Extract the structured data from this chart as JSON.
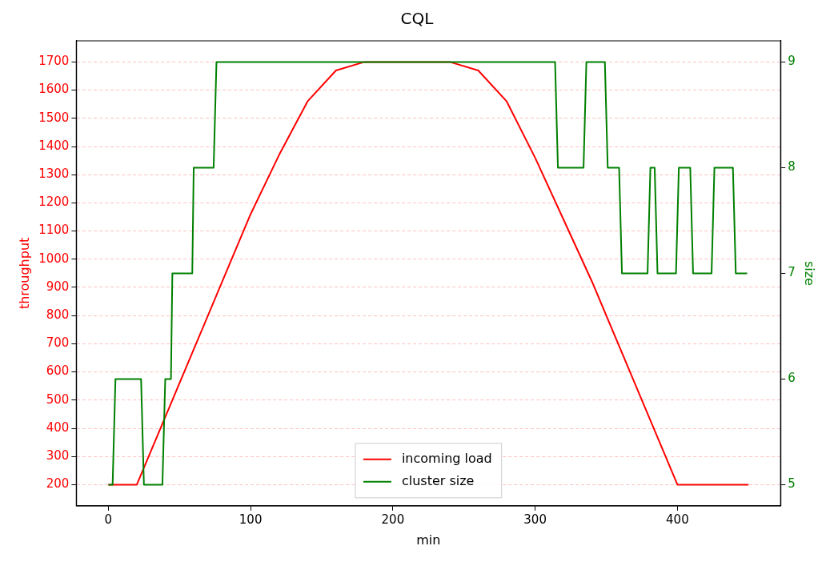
{
  "chart_data": {
    "type": "line",
    "title": "CQL",
    "xlabel": "min",
    "ylabel": "throughput",
    "y2label": "size",
    "xlim": [
      -22.5,
      472.5
    ],
    "xticks": [
      0,
      100,
      200,
      300,
      400
    ],
    "ylim": [
      125,
      1775
    ],
    "yticks": [
      200,
      300,
      400,
      500,
      600,
      700,
      800,
      900,
      1000,
      1100,
      1200,
      1300,
      1400,
      1500,
      1600,
      1700
    ],
    "y2lim": [
      4.8,
      9.2
    ],
    "y2ticks": [
      5,
      6,
      7,
      8,
      9
    ],
    "grid": "y",
    "legend": "bottom",
    "line_style": "solid",
    "marker": "none",
    "series": [
      {
        "name": "incoming load",
        "color": "#ff0000",
        "x": [
          0,
          20,
          40,
          60,
          80,
          100,
          120,
          140,
          160,
          180,
          240,
          260,
          280,
          300,
          320,
          340,
          360,
          380,
          400,
          450
        ],
        "values": [
          200,
          200,
          440,
          680,
          920,
          1160,
          1370,
          1560,
          1670,
          1700,
          1700,
          1670,
          1560,
          1360,
          1140,
          920,
          680,
          440,
          200,
          200
        ]
      },
      {
        "name": "cluster size",
        "color": "#008000",
        "axis": "y2",
        "x": [
          0,
          3,
          5,
          23,
          25,
          38,
          40,
          44,
          45,
          59,
          60,
          74,
          76,
          314,
          316,
          334,
          336,
          349,
          351,
          359,
          361,
          379,
          381,
          384,
          386,
          399,
          401,
          409,
          411,
          424,
          426,
          439,
          441,
          449
        ],
        "values": [
          5,
          5,
          6,
          6,
          5,
          5,
          6,
          6,
          7,
          7,
          8,
          8,
          9,
          9,
          8,
          8,
          9,
          9,
          8,
          8,
          7,
          7,
          8,
          8,
          7,
          7,
          8,
          8,
          7,
          7,
          8,
          8,
          7,
          7
        ]
      }
    ]
  }
}
